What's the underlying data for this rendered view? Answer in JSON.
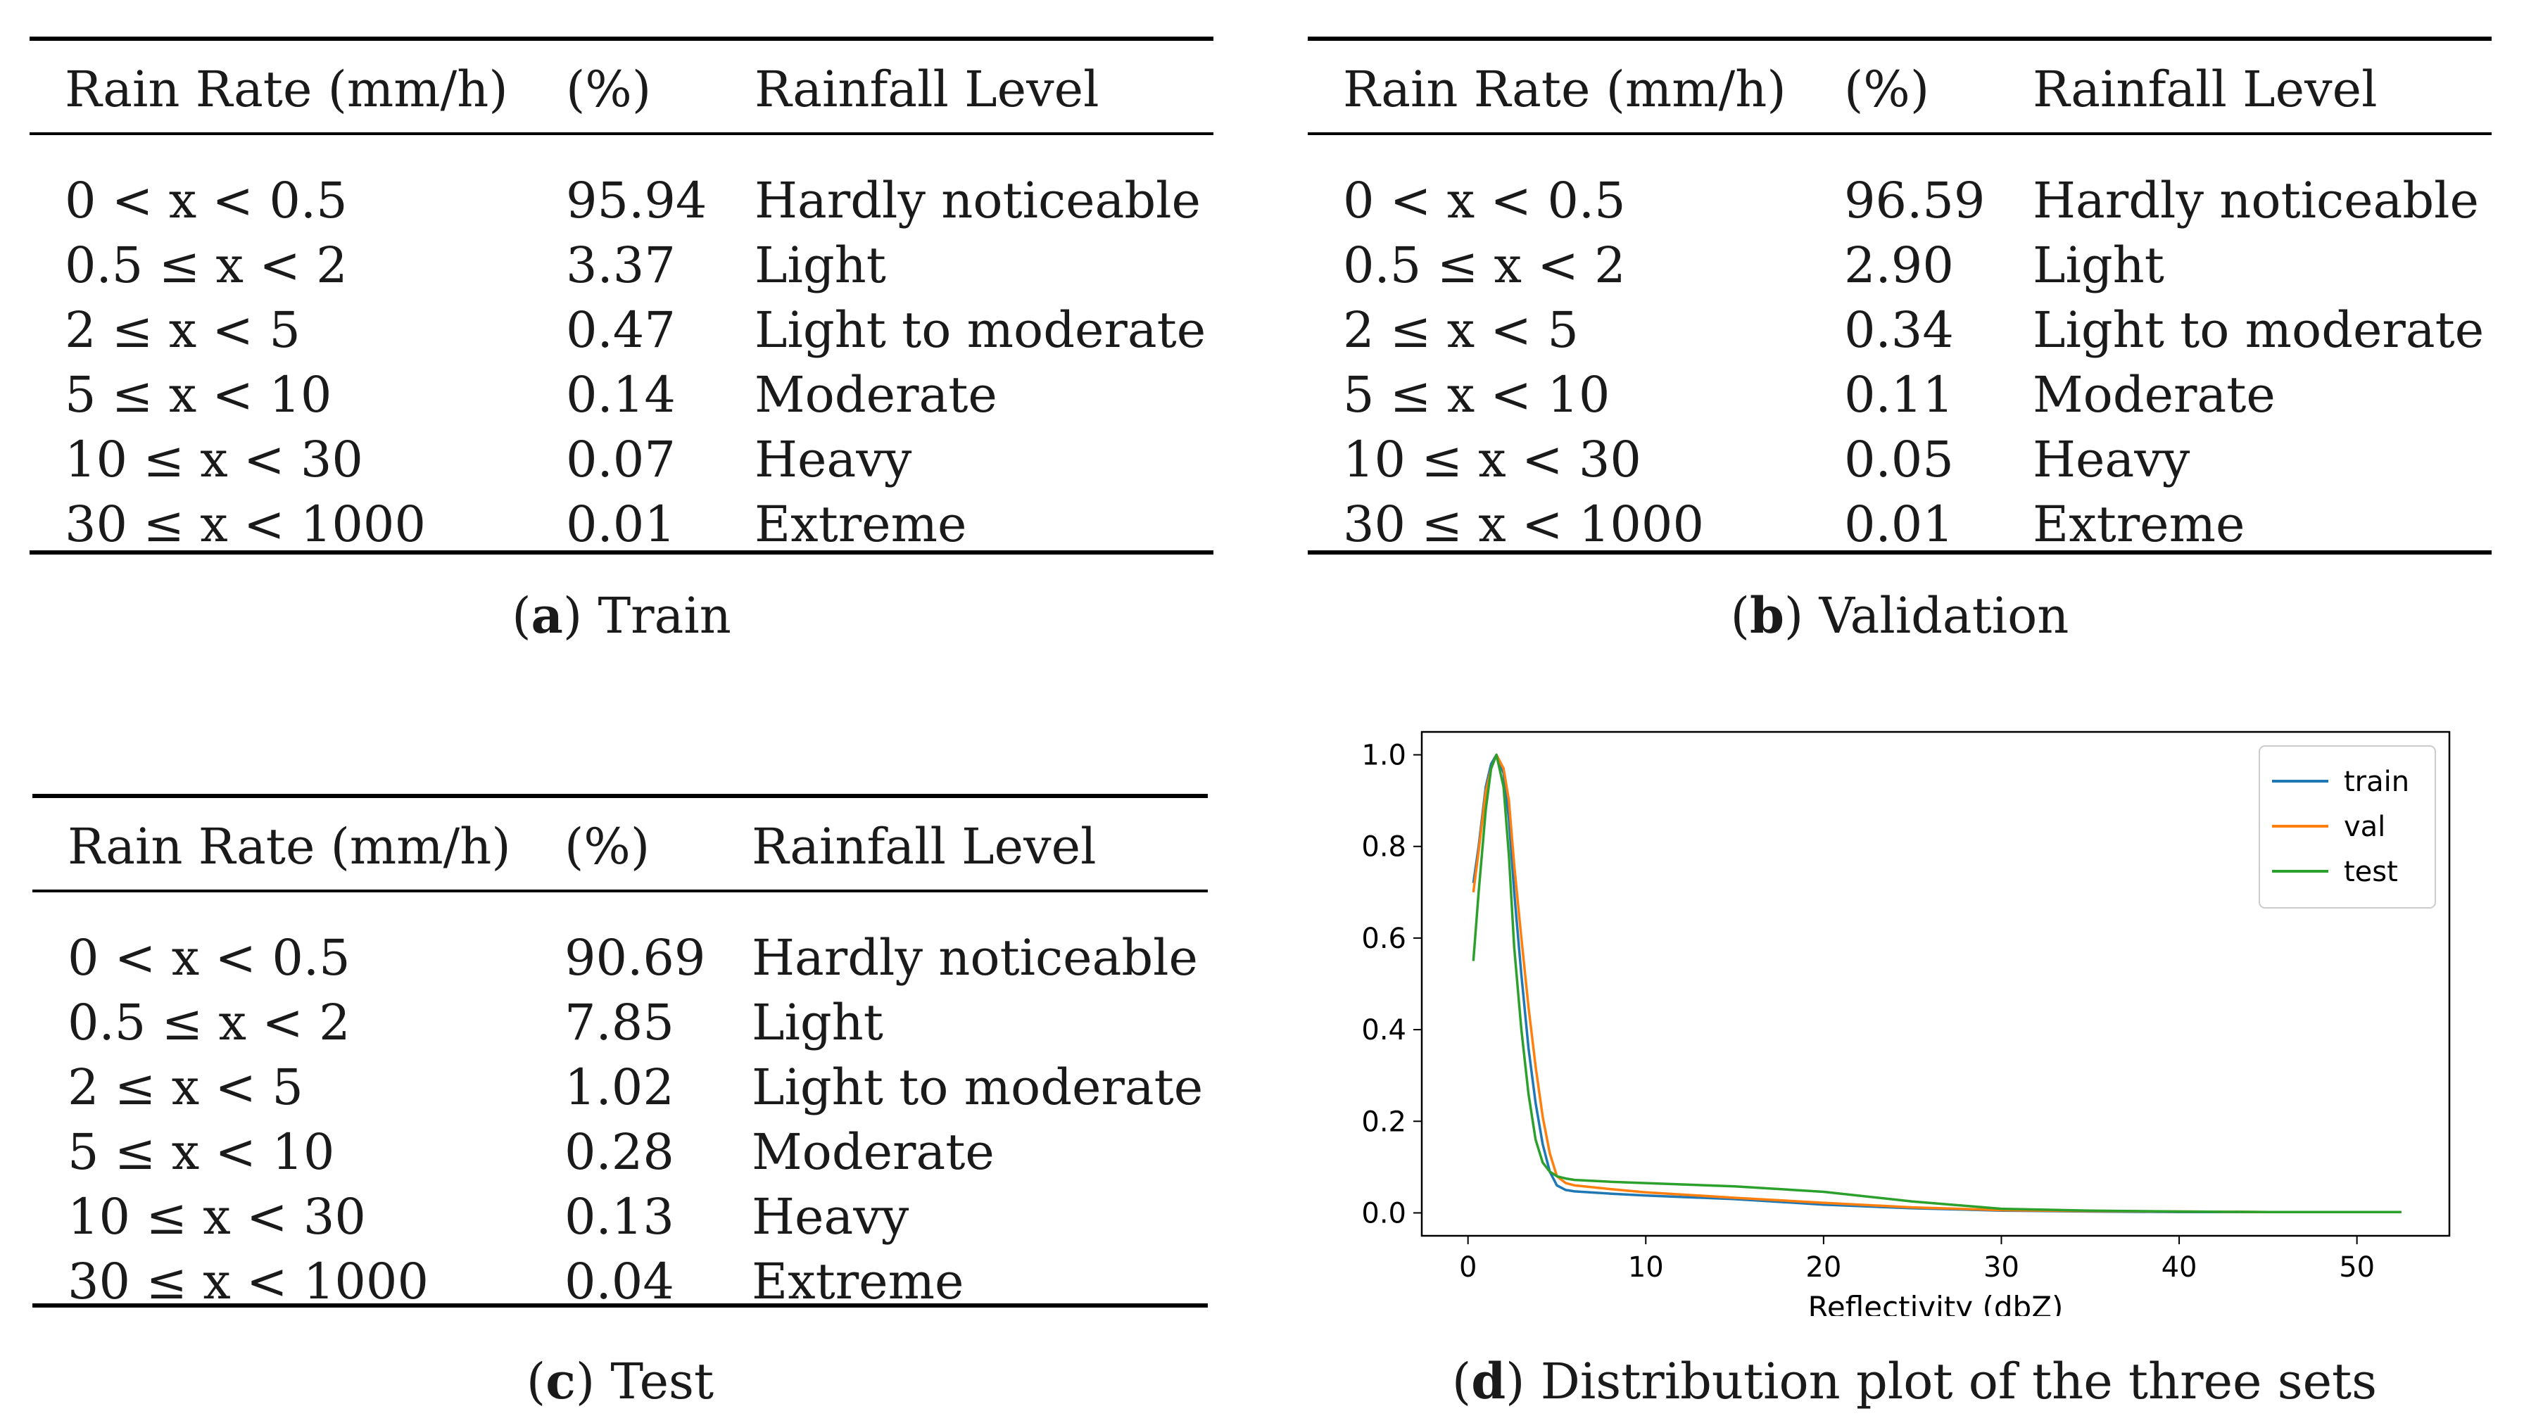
{
  "tables": [
    {
      "id": "a",
      "caption_letter": "a",
      "caption_text": "Train",
      "headers": [
        "Rain Rate (mm/h)",
        "(%)",
        "Rainfall Level"
      ],
      "rows": [
        [
          "0 < x < 0.5",
          "95.94",
          "Hardly noticeable"
        ],
        [
          "0.5 ≤ x < 2",
          "3.37",
          "Light"
        ],
        [
          "2 ≤ x < 5",
          "0.47",
          "Light to moderate"
        ],
        [
          "5 ≤ x < 10",
          "0.14",
          "Moderate"
        ],
        [
          "10 ≤ x < 30",
          "0.07",
          "Heavy"
        ],
        [
          "30 ≤ x < 1000",
          "0.01",
          "Extreme"
        ]
      ]
    },
    {
      "id": "b",
      "caption_letter": "b",
      "caption_text": "Validation",
      "headers": [
        "Rain Rate (mm/h)",
        "(%)",
        "Rainfall Level"
      ],
      "rows": [
        [
          "0 < x < 0.5",
          "96.59",
          "Hardly noticeable"
        ],
        [
          "0.5 ≤ x < 2",
          "2.90",
          "Light"
        ],
        [
          "2 ≤ x < 5",
          "0.34",
          "Light to moderate"
        ],
        [
          "5 ≤ x < 10",
          "0.11",
          "Moderate"
        ],
        [
          "10 ≤ x < 30",
          "0.05",
          "Heavy"
        ],
        [
          "30 ≤ x < 1000",
          "0.01",
          "Extreme"
        ]
      ]
    },
    {
      "id": "c",
      "caption_letter": "c",
      "caption_text": "Test",
      "headers": [
        "Rain Rate (mm/h)",
        "(%)",
        "Rainfall Level"
      ],
      "rows": [
        [
          "0 < x < 0.5",
          "90.69",
          "Hardly noticeable"
        ],
        [
          "0.5 ≤ x < 2",
          "7.85",
          "Light"
        ],
        [
          "2 ≤ x < 5",
          "1.02",
          "Light to moderate"
        ],
        [
          "5 ≤ x < 10",
          "0.28",
          "Moderate"
        ],
        [
          "10 ≤ x < 30",
          "0.13",
          "Heavy"
        ],
        [
          "30 ≤ x < 1000",
          "0.04",
          "Extreme"
        ]
      ]
    }
  ],
  "chart_caption": {
    "letter": "d",
    "text": "Distribution plot of the three sets"
  },
  "chart_data": {
    "type": "line",
    "title": "",
    "xlabel": "Reflectivity (dbZ)",
    "ylabel": "",
    "xlim": [
      -2.6,
      55.2
    ],
    "ylim": [
      -0.05,
      1.05
    ],
    "xticks": [
      0,
      10,
      20,
      30,
      40,
      50
    ],
    "yticks": [
      0.0,
      0.2,
      0.4,
      0.6,
      0.8,
      1.0
    ],
    "xtick_labels": [
      "0",
      "10",
      "20",
      "30",
      "40",
      "50"
    ],
    "ytick_labels": [
      "0.0",
      "0.2",
      "0.4",
      "0.6",
      "0.8",
      "1.0"
    ],
    "legend_position": "top-right",
    "grid": false,
    "series": [
      {
        "name": "train",
        "color": "#1f77b4",
        "x": [
          0.3,
          0.6,
          1.0,
          1.3,
          1.6,
          2.0,
          2.3,
          2.6,
          3.0,
          3.4,
          3.8,
          4.2,
          4.6,
          5.0,
          5.5,
          6,
          8,
          10,
          15,
          20,
          25,
          30,
          35,
          40,
          45,
          50,
          52.5
        ],
        "y": [
          0.72,
          0.8,
          0.93,
          0.98,
          1.0,
          0.96,
          0.86,
          0.7,
          0.52,
          0.36,
          0.24,
          0.15,
          0.09,
          0.06,
          0.05,
          0.047,
          0.042,
          0.038,
          0.03,
          0.018,
          0.01,
          0.005,
          0.003,
          0.002,
          0.002,
          0.002,
          0.002
        ]
      },
      {
        "name": "val",
        "color": "#ff7f0e",
        "x": [
          0.3,
          0.6,
          1.0,
          1.3,
          1.6,
          2.0,
          2.3,
          2.6,
          3.0,
          3.4,
          3.8,
          4.2,
          4.6,
          5.0,
          5.5,
          6,
          8,
          10,
          15,
          20,
          25,
          30,
          35,
          40,
          45,
          50,
          52.5
        ],
        "y": [
          0.7,
          0.79,
          0.92,
          0.97,
          1.0,
          0.97,
          0.9,
          0.76,
          0.6,
          0.45,
          0.32,
          0.21,
          0.13,
          0.08,
          0.065,
          0.06,
          0.052,
          0.045,
          0.033,
          0.022,
          0.012,
          0.006,
          0.004,
          0.003,
          0.002,
          0.002,
          0.002
        ]
      },
      {
        "name": "test",
        "color": "#2ca02c",
        "x": [
          0.3,
          0.6,
          1.0,
          1.3,
          1.6,
          2.0,
          2.3,
          2.6,
          3.0,
          3.4,
          3.8,
          4.2,
          4.6,
          5.0,
          5.5,
          6,
          8,
          10,
          15,
          20,
          25,
          30,
          35,
          40,
          45,
          50,
          52.5
        ],
        "y": [
          0.55,
          0.7,
          0.88,
          0.97,
          1.0,
          0.93,
          0.78,
          0.58,
          0.4,
          0.26,
          0.16,
          0.11,
          0.09,
          0.08,
          0.075,
          0.072,
          0.068,
          0.065,
          0.058,
          0.046,
          0.025,
          0.009,
          0.005,
          0.003,
          0.002,
          0.002,
          0.002
        ]
      }
    ]
  }
}
